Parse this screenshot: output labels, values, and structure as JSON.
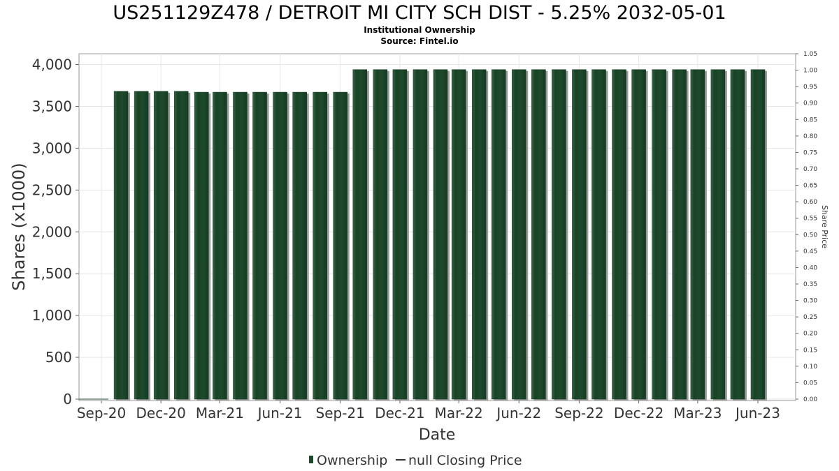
{
  "chart_data": {
    "type": "bar",
    "title": "US251129Z478 / DETROIT MI CITY SCH DIST - 5.25% 2032-05-01",
    "subtitle": "Institutional Ownership",
    "source": "Source: Fintel.io",
    "xlabel": "Date",
    "ylabel": "Shares (x1000)",
    "y2label": "Share Price",
    "ylim": [
      0,
      4000
    ],
    "y2lim": [
      0,
      1.05
    ],
    "yticks": [
      "0",
      "500",
      "1,000",
      "1,500",
      "2,000",
      "2,500",
      "3,000",
      "3,500",
      "4,000"
    ],
    "y2ticks": [
      "0.00",
      "0.05",
      "0.10",
      "0.15",
      "0.20",
      "0.25",
      "0.30",
      "0.35",
      "0.40",
      "0.45",
      "0.50",
      "0.55",
      "0.60",
      "0.65",
      "0.70",
      "0.75",
      "0.80",
      "0.85",
      "0.90",
      "0.95",
      "1.00",
      "1.05"
    ],
    "xticks": [
      "Sep-20",
      "Dec-20",
      "Mar-21",
      "Jun-21",
      "Sep-21",
      "Dec-21",
      "Mar-22",
      "Jun-22",
      "Sep-22",
      "Dec-22",
      "Mar-23",
      "Jun-23"
    ],
    "grid": true,
    "legend_position": "bottom",
    "legend": [
      {
        "label": "Ownership",
        "symbol": "bar"
      },
      {
        "label": "null Closing Price",
        "symbol": "line"
      }
    ],
    "bar_color": "#1e4a2c",
    "series": [
      {
        "name": "Ownership",
        "x": [
          "2020-10-01",
          "2020-11-01",
          "2020-12-01",
          "2021-01-01",
          "2021-02-01",
          "2021-03-01",
          "2021-04-01",
          "2021-05-01",
          "2021-06-01",
          "2021-07-01",
          "2021-08-01",
          "2021-09-01",
          "2021-10-01",
          "2021-11-01",
          "2021-12-01",
          "2022-01-01",
          "2022-02-01",
          "2022-03-01",
          "2022-04-01",
          "2022-05-01",
          "2022-06-01",
          "2022-07-01",
          "2022-08-01",
          "2022-09-01",
          "2022-10-01",
          "2022-11-01",
          "2022-12-01",
          "2023-01-01",
          "2023-02-01",
          "2023-03-01",
          "2023-04-01",
          "2023-05-01",
          "2023-06-01"
        ],
        "values": [
          3680,
          3680,
          3680,
          3680,
          3670,
          3670,
          3670,
          3670,
          3670,
          3670,
          3670,
          3670,
          3940,
          3940,
          3940,
          3940,
          3940,
          3940,
          3940,
          3940,
          3940,
          3940,
          3940,
          3940,
          3940,
          3940,
          3940,
          3940,
          3940,
          3940,
          3940,
          3940,
          3940
        ]
      }
    ]
  }
}
